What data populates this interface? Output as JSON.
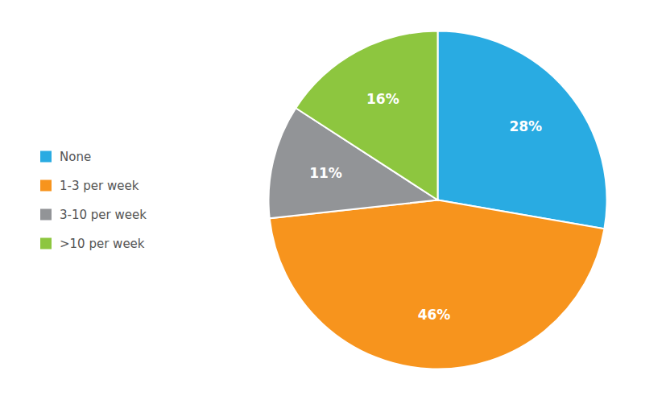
{
  "chart_data": {
    "type": "pie",
    "categories": [
      "None",
      "1-3 per week",
      "3-10 per week",
      ">10 per week"
    ],
    "values": [
      28,
      46,
      11,
      16
    ],
    "value_labels": [
      "28%",
      "46%",
      "11%",
      "16%"
    ],
    "colors": [
      "#29ABE2",
      "#F7941D",
      "#929497",
      "#8DC63F"
    ],
    "data_labels": true,
    "legend": "left"
  }
}
